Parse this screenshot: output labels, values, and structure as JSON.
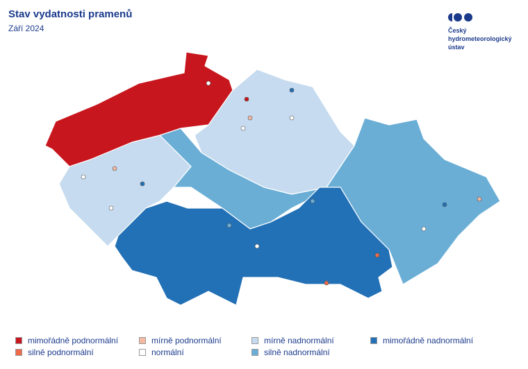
{
  "header": {
    "title": "Stav vydatnosti pramenů",
    "subtitle": "Září 2024"
  },
  "logo": {
    "lines": [
      "Český",
      "hydrometeorologický",
      "ústav"
    ]
  },
  "legend": [
    {
      "label": "mimořádně podnormální",
      "color": "#c8161e"
    },
    {
      "label": "silně podnormální",
      "color": "#ee6a4b"
    },
    {
      "label": "mírně podnormální",
      "color": "#f5b8a3"
    },
    {
      "label": "normální",
      "color": "#ffffff"
    },
    {
      "label": "mírně nadnormální",
      "color": "#c6dbef"
    },
    {
      "label": "silně nadnormální",
      "color": "#6aaed6"
    },
    {
      "label": "mimořádně nadnormální",
      "color": "#2270b5"
    }
  ]
}
